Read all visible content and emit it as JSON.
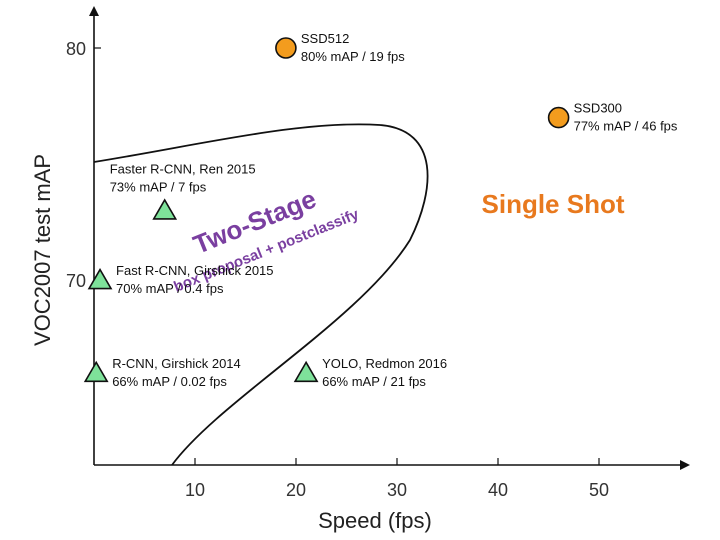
{
  "chart_data": {
    "type": "scatter",
    "title": "",
    "xlabel": "Speed (fps)",
    "ylabel": "VOC2007 test mAP",
    "xlim": [
      0,
      58
    ],
    "ylim": [
      62,
      82
    ],
    "x_ticks": [
      10,
      20,
      30,
      40,
      50
    ],
    "y_ticks": [
      70,
      80
    ],
    "grid": false,
    "legend": "none",
    "colors": {
      "two_stage_marker": "#7ee29a",
      "single_shot_marker": "#f39c1e",
      "two_stage_text": "#7a3fa0",
      "single_shot_text": "#e8791e"
    },
    "points": [
      {
        "name": "SSD512",
        "label": "SSD512",
        "sublabel": "80% mAP / 19 fps",
        "x": 19,
        "y": 80,
        "marker": "circle"
      },
      {
        "name": "SSD300",
        "label": "SSD300",
        "sublabel": "77% mAP / 46 fps",
        "x": 46,
        "y": 77,
        "marker": "circle"
      },
      {
        "name": "Faster R-CNN",
        "label": "Faster R-CNN, Ren 2015",
        "sublabel": "73% mAP / 7 fps",
        "x": 7,
        "y": 73,
        "marker": "triangle"
      },
      {
        "name": "Fast R-CNN",
        "label": "Fast R-CNN, Girshick 2015",
        "sublabel": "70% mAP / 0.4 fps",
        "x": 0.4,
        "y": 70,
        "marker": "triangle"
      },
      {
        "name": "R-CNN",
        "label": "R-CNN, Girshick 2014",
        "sublabel": "66% mAP / 0.02 fps",
        "x": 0.02,
        "y": 66,
        "marker": "triangle"
      },
      {
        "name": "YOLO",
        "label": "YOLO, Redmon 2016",
        "sublabel": "66% mAP / 21 fps",
        "x": 21,
        "y": 66,
        "marker": "triangle"
      }
    ],
    "regions": {
      "two_stage": {
        "title": "Two-Stage",
        "subtitle": "box proposal + postclassify"
      },
      "single_shot": {
        "title": "Single Shot"
      }
    }
  }
}
